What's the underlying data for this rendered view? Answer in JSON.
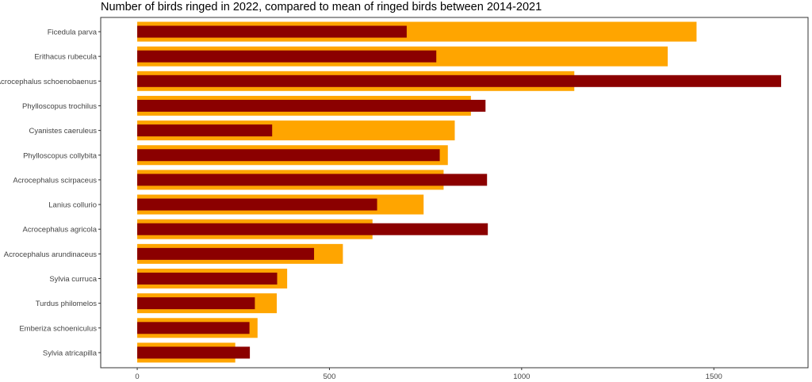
{
  "chart_data": {
    "type": "bar",
    "orientation": "horizontal",
    "title": "Number of birds ringed in 2022, compared to mean of ringed birds between 2014-2021",
    "xlabel": "",
    "ylabel": "",
    "xlim": [
      -95,
      1745
    ],
    "x_ticks": [
      0,
      500,
      1000,
      1500
    ],
    "grid": false,
    "legend": "none",
    "categories": [
      "Ficedula parva",
      "Erithacus rubecula",
      "Acrocephalus schoenobaenus",
      "Phylloscopus trochilus",
      "Cyanistes caeruleus",
      "Phylloscopus collybita",
      "Acrocephalus scirpaceus",
      "Lanius collurio",
      "Acrocephalus agricola",
      "Acrocephalus arundinaceus",
      "Sylvia curruca",
      "Turdus philomelos",
      "Emberiza schoeniculus",
      "Sylvia atricapilla"
    ],
    "series": [
      {
        "color": "#FFA500",
        "role": "background-wide",
        "values": [
          1455,
          1380,
          1137,
          868,
          826,
          808,
          797,
          745,
          612,
          535,
          390,
          363,
          313,
          255
        ]
      },
      {
        "color": "#8B0000",
        "role": "foreground-narrow",
        "values": [
          701,
          778,
          1675,
          906,
          351,
          787,
          910,
          624,
          912,
          460,
          364,
          306,
          292,
          293
        ]
      }
    ]
  }
}
